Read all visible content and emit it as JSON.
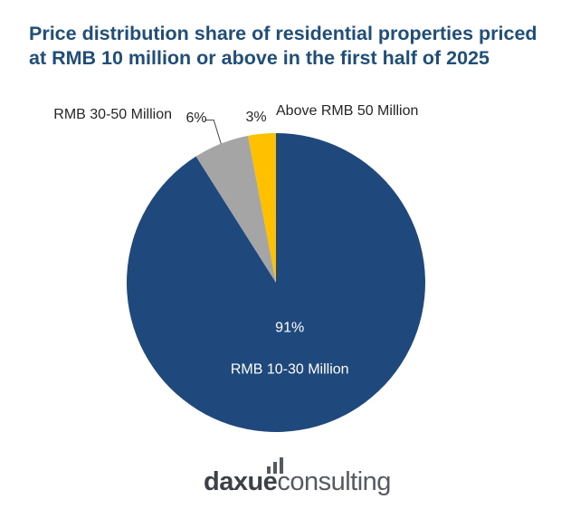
{
  "title_line1": "Price distribution share of residential properties priced",
  "title_line2": "at RMB 10 million or above in the first half of 2025",
  "chart_data": {
    "type": "pie",
    "title": "Price distribution share of residential properties priced at RMB 10 million or above in the first half of 2025",
    "series": [
      {
        "name": "RMB 10-30 Million",
        "value": 91,
        "label": "91%",
        "color": "#1f497d"
      },
      {
        "name": "RMB 30-50 Million",
        "value": 6,
        "label": "6%",
        "color": "#a5a5a5"
      },
      {
        "name": "Above RMB 50 Million",
        "value": 3,
        "label": "3%",
        "color": "#ffc000"
      }
    ]
  },
  "logo": {
    "part1": "daxue",
    "part2": "consulting",
    "bar_color": "#555a61"
  }
}
